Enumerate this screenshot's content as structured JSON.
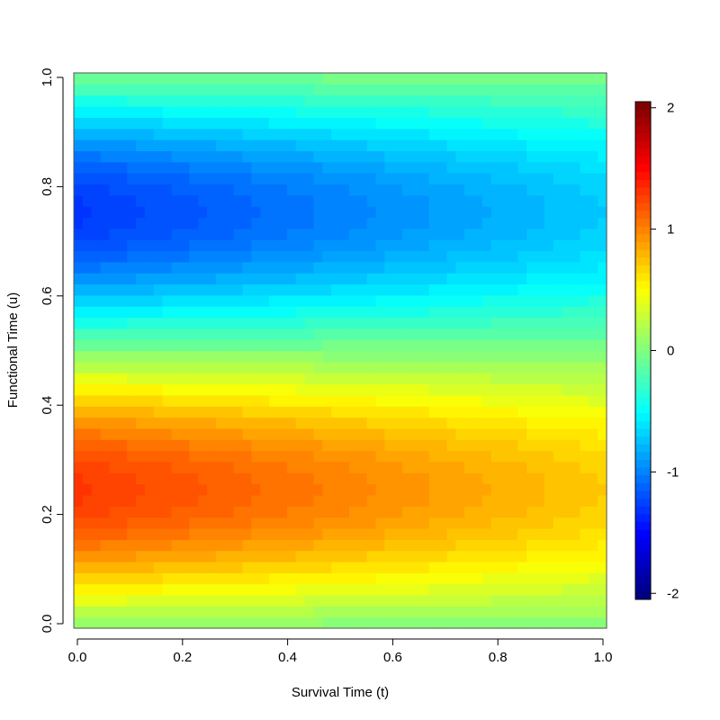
{
  "chart_data": {
    "type": "heatmap",
    "title": "",
    "xlabel": "Survival Time (t)",
    "ylabel": "Functional Time (u)",
    "xlim": [
      0,
      1
    ],
    "ylim": [
      0,
      1
    ],
    "x_ticks": [
      "0.0",
      "0.2",
      "0.4",
      "0.6",
      "0.8",
      "1.0"
    ],
    "y_ticks": [
      "0.0",
      "0.2",
      "0.4",
      "0.6",
      "0.8",
      "1.0"
    ],
    "colorbar": {
      "zlim": [
        -2.05,
        2.05
      ],
      "ticks": [
        "-2",
        "-1",
        "0",
        "1",
        "2"
      ],
      "palette": "jet",
      "position": "right"
    },
    "surface": {
      "description_of_pattern": "z(t,u) ≈ (1.3 - 0.6 t) · sin(2π u)",
      "peak": {
        "t": 0.0,
        "u": 0.25,
        "z": 1.3
      },
      "trough": {
        "t": 0.0,
        "u": 0.75,
        "z": -1.3
      },
      "edge_values_at_t1": {
        "u_0.25": 0.7,
        "u_0.75": -0.7
      },
      "grid_resolution": {
        "t_cells": 60,
        "u_cells": 50
      }
    }
  }
}
